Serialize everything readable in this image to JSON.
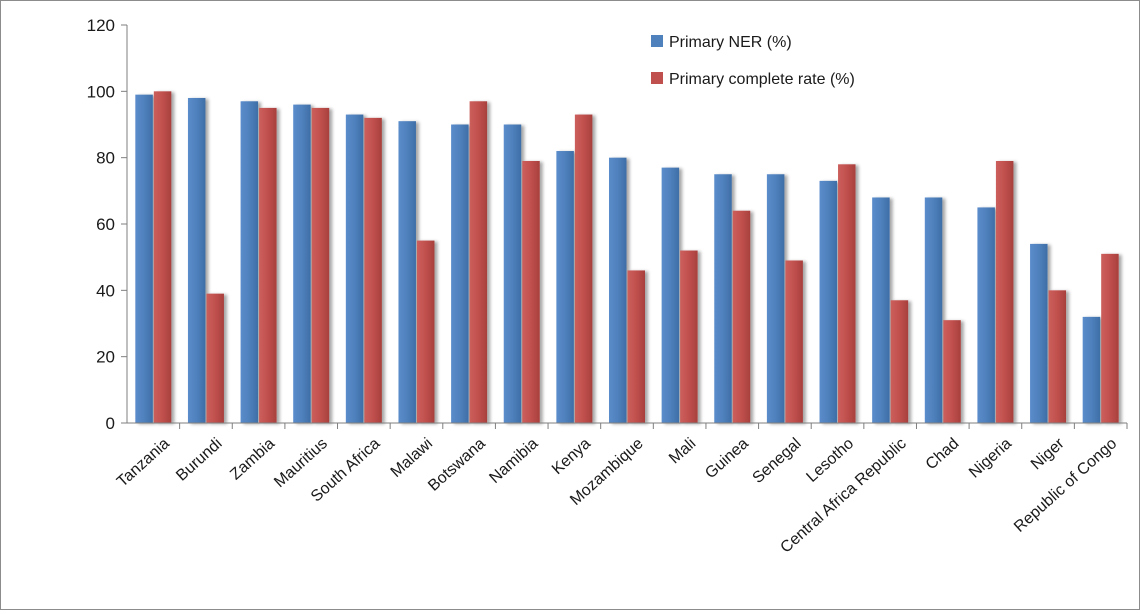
{
  "chart_data": {
    "type": "bar",
    "title": "",
    "xlabel": "",
    "ylabel": "",
    "categories": [
      "Tanzania",
      "Burundi",
      "Zambia",
      "Mauritius",
      "South Africa",
      "Malawi",
      "Botswana",
      "Namibia",
      "Kenya",
      "Mozambique",
      "Mali",
      "Guinea",
      "Senegal",
      "Lesotho",
      "Central Africa Republic",
      "Chad",
      "Nigeria",
      "Niger",
      "Republic of Congo"
    ],
    "series": [
      {
        "name": "Primary NER (%)",
        "color": "#4f81bd",
        "values": [
          99,
          98,
          97,
          96,
          93,
          91,
          90,
          90,
          82,
          80,
          77,
          75,
          75,
          73,
          68,
          68,
          65,
          54,
          32
        ]
      },
      {
        "name": "Primary complete rate (%)",
        "color": "#c0504d",
        "values": [
          100,
          39,
          95,
          95,
          92,
          55,
          97,
          79,
          93,
          46,
          52,
          64,
          49,
          78,
          37,
          31,
          79,
          40,
          51
        ]
      }
    ],
    "ylim": [
      0,
      120
    ],
    "yticks": [
      0,
      20,
      40,
      60,
      80,
      100,
      120
    ],
    "grid": false,
    "legend_position": "top-right"
  }
}
